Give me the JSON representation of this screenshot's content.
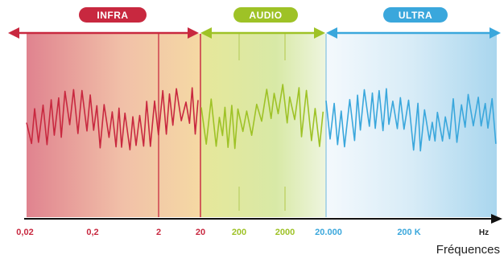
{
  "bands": [
    {
      "label": "INFRA",
      "color": "#c8283f"
    },
    {
      "label": "AUDIO",
      "color": "#9ec226"
    },
    {
      "label": "ULTRA",
      "color": "#3aa7dc"
    }
  ],
  "ticks": [
    {
      "label": "0,02",
      "color": "#c8283f"
    },
    {
      "label": "0,2",
      "color": "#c8283f"
    },
    {
      "label": "2",
      "color": "#c8283f"
    },
    {
      "label": "20",
      "color": "#c8283f"
    },
    {
      "label": "200",
      "color": "#9ec226"
    },
    {
      "label": "2000",
      "color": "#9ec226"
    },
    {
      "label": "20.000",
      "color": "#3aa7dc"
    },
    {
      "label": "200 K",
      "color": "#3aa7dc"
    }
  ],
  "axis": {
    "unit": "Hz",
    "title": "Fréquences"
  }
}
